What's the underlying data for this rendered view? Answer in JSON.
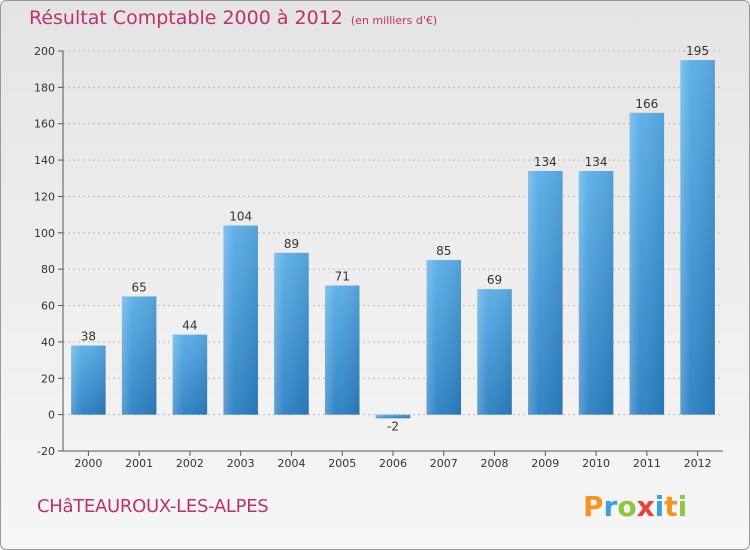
{
  "header": {
    "title": "Résultat Comptable 2000 à 2012",
    "subtitle": "(en milliers d'€)"
  },
  "footer": {
    "commune": "CHâTEAUROUX-LES-ALPES",
    "logo": {
      "letters": [
        "P",
        "r",
        "o",
        "x",
        "i",
        "t",
        "i"
      ],
      "colors": [
        "#f7941d",
        "#3aa0e0",
        "#8dc63f",
        "#e8423f",
        "#3aa0e0",
        "#f7941d",
        "#8dc63f"
      ]
    }
  },
  "colors": {
    "bar_light": "#5aaee8",
    "bar_dark": "#2a7fc2",
    "axis": "#555555",
    "grid": "#bbbbbb"
  },
  "chart_data": {
    "type": "bar",
    "title": "Résultat Comptable 2000 à 2012",
    "subtitle": "(en milliers d'€)",
    "categories": [
      "2000",
      "2001",
      "2002",
      "2003",
      "2004",
      "2005",
      "2006",
      "2007",
      "2008",
      "2009",
      "2010",
      "2011",
      "2012"
    ],
    "values": [
      38,
      65,
      44,
      104,
      89,
      71,
      -2,
      85,
      69,
      134,
      134,
      166,
      195
    ],
    "ylim": [
      -20,
      200
    ],
    "yticks": [
      -20,
      0,
      20,
      40,
      60,
      80,
      100,
      120,
      140,
      160,
      180,
      200
    ],
    "xlabel": "",
    "ylabel": "",
    "grid": true,
    "legend": "none"
  }
}
